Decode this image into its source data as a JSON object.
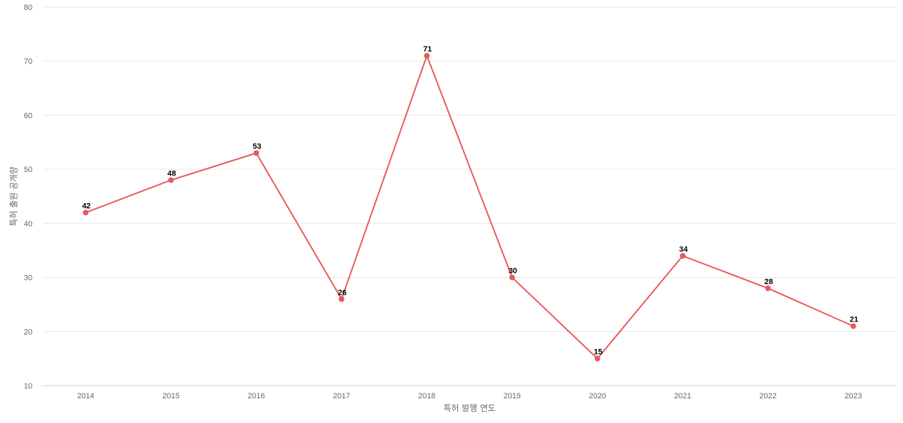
{
  "chart_data": {
    "type": "line",
    "title": "",
    "xlabel": "특허 발행 연도",
    "ylabel": "특허 출원 공개량",
    "categories": [
      "2014",
      "2015",
      "2016",
      "2017",
      "2018",
      "2019",
      "2020",
      "2021",
      "2022",
      "2023"
    ],
    "series": [
      {
        "values": [
          42,
          48,
          53,
          26,
          71,
          30,
          15,
          34,
          28,
          21
        ],
        "color": "#e85a5a"
      }
    ],
    "ylim": [
      10,
      80
    ],
    "yticks": [
      10,
      20,
      30,
      40,
      50,
      60,
      70,
      80
    ],
    "grid": true,
    "legend": "none",
    "data_labels": true
  }
}
